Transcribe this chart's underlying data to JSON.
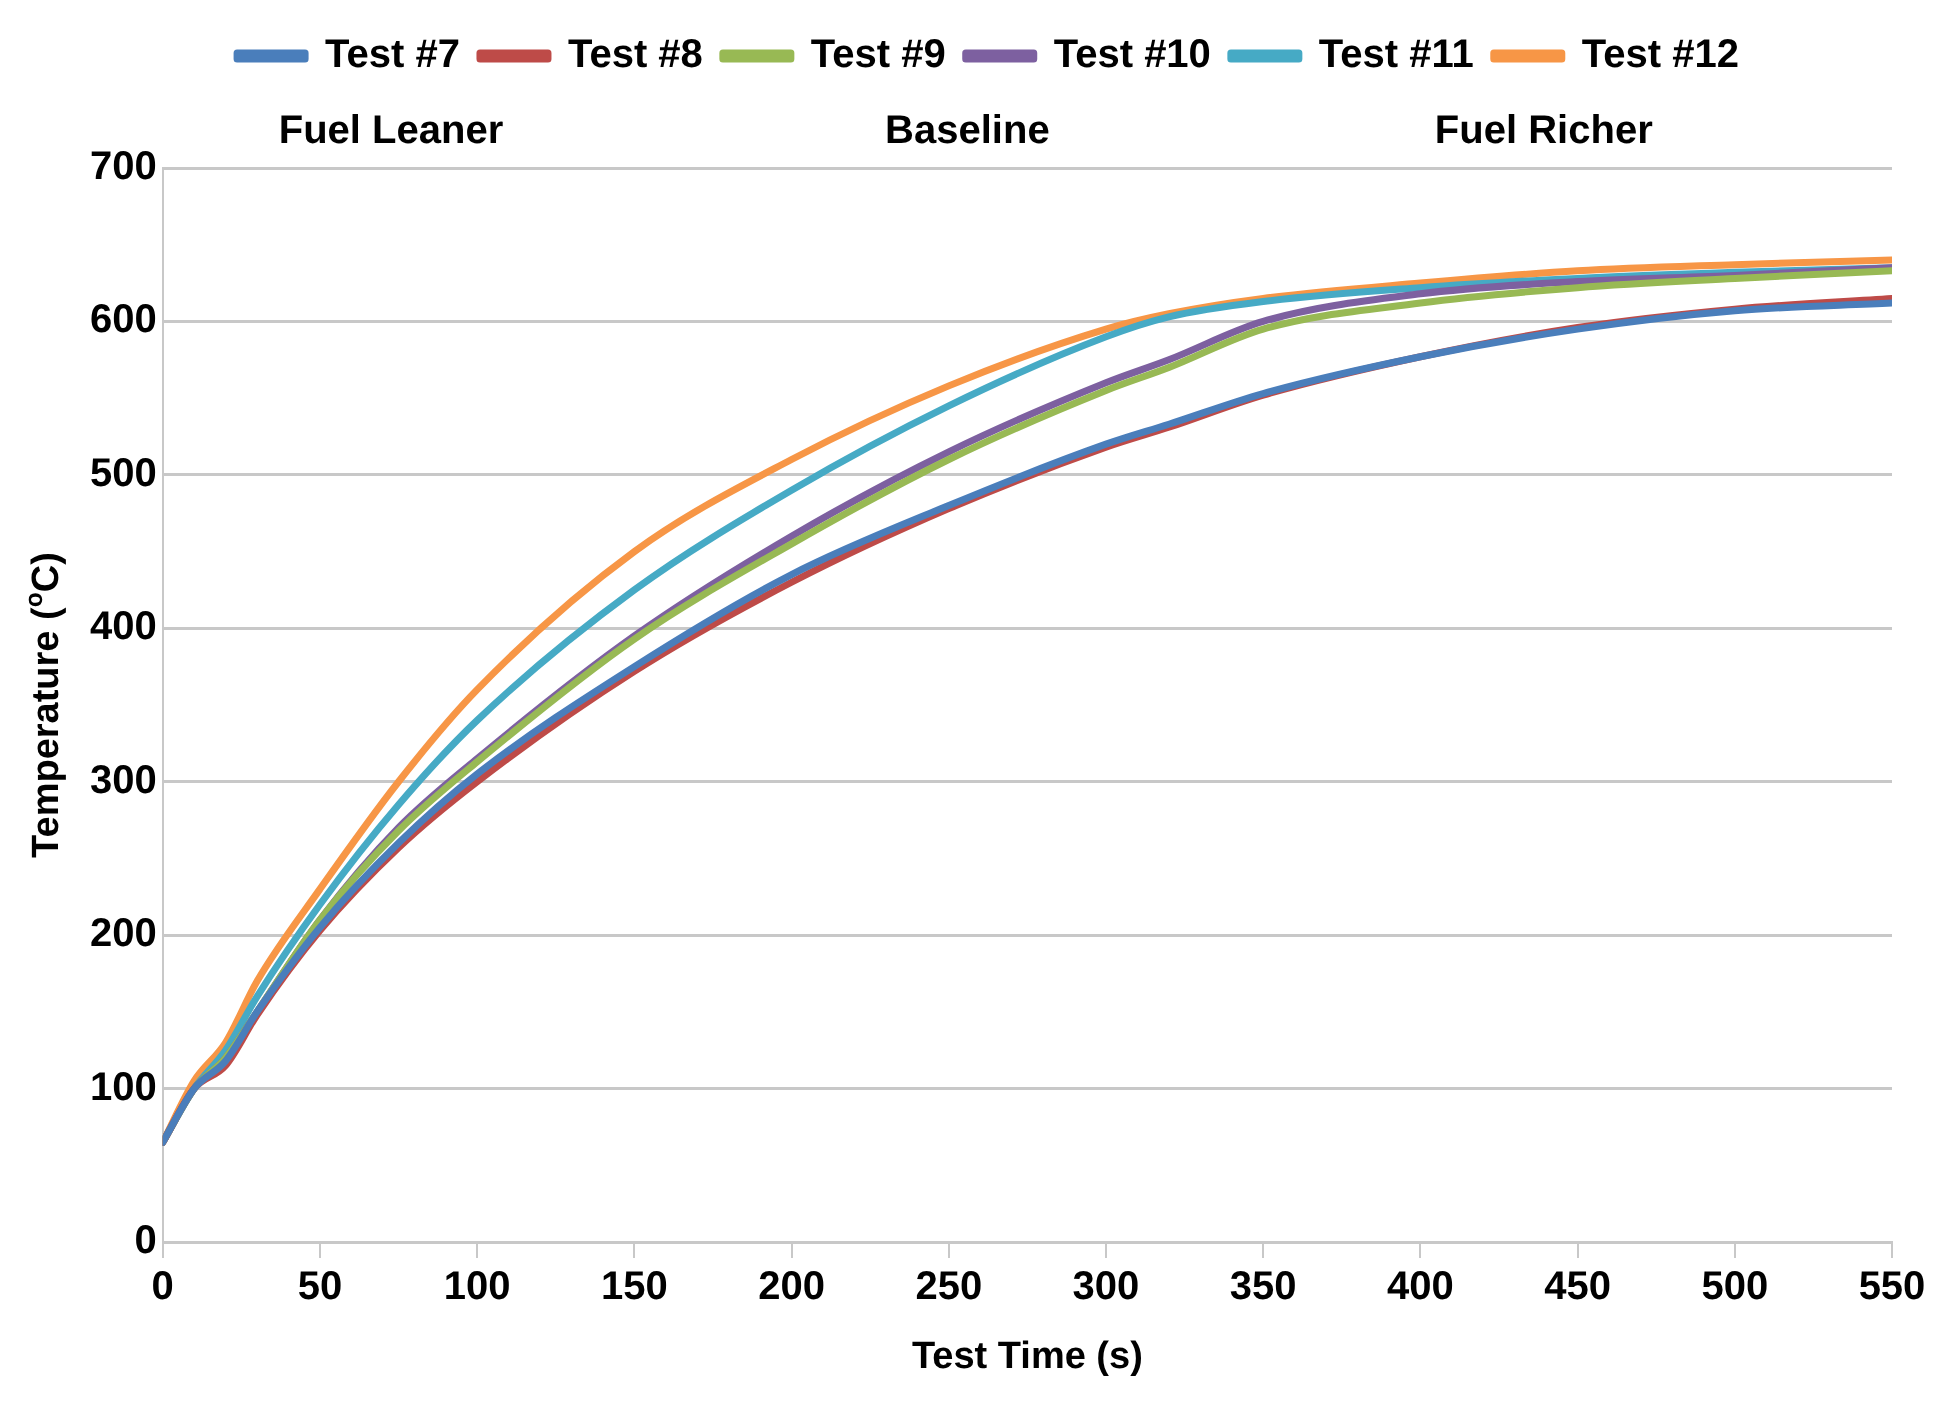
{
  "chart_data": {
    "type": "line",
    "xlabel": "Test Time (s)",
    "ylabel": "Temperature ($^{o}$C)",
    "annotations": [
      "Fuel Leaner",
      "Baseline",
      "Fuel Richer"
    ],
    "x": [
      0,
      10,
      20,
      30,
      50,
      75,
      100,
      150,
      200,
      250,
      300,
      320,
      350,
      400,
      450,
      500,
      550
    ],
    "series": [
      {
        "name": "Test #7",
        "color": "#4a7ebb",
        "values": [
          65,
          100,
          118,
          150,
          205,
          260,
          305,
          375,
          435,
          480,
          520,
          533,
          553,
          577,
          595,
          607,
          612
        ]
      },
      {
        "name": "Test #8",
        "color": "#be4b48",
        "values": [
          65,
          100,
          115,
          148,
          203,
          257,
          300,
          372,
          430,
          478,
          518,
          531,
          552,
          577,
          596,
          608,
          615
        ]
      },
      {
        "name": "Test #9",
        "color": "#98b954",
        "values": [
          65,
          100,
          120,
          150,
          210,
          268,
          313,
          393,
          455,
          510,
          555,
          570,
          595,
          612,
          622,
          628,
          633
        ]
      },
      {
        "name": "Test #10",
        "color": "#7d60a0",
        "values": [
          65,
          100,
          120,
          150,
          210,
          270,
          315,
          395,
          460,
          515,
          560,
          575,
          600,
          618,
          626,
          630,
          635
        ]
      },
      {
        "name": "Test #11",
        "color": "#46aac5",
        "values": [
          65,
          100,
          125,
          160,
          220,
          285,
          340,
          425,
          490,
          545,
          590,
          603,
          613,
          622,
          628,
          632,
          635
        ]
      },
      {
        "name": "Test #12",
        "color": "#f79646",
        "values": [
          65,
          105,
          130,
          170,
          230,
          300,
          360,
          450,
          510,
          558,
          595,
          605,
          615,
          625,
          633,
          637,
          640
        ]
      }
    ],
    "xlim": [
      0,
      550
    ],
    "xticks": [
      0,
      50,
      100,
      150,
      200,
      250,
      300,
      350,
      400,
      450,
      500,
      550
    ],
    "ylim": [
      0,
      700
    ],
    "yticks": [
      0,
      100,
      200,
      300,
      400,
      500,
      600,
      700
    ],
    "grid": "y",
    "legend": "top",
    "marker": "none",
    "line_style": "solid"
  }
}
